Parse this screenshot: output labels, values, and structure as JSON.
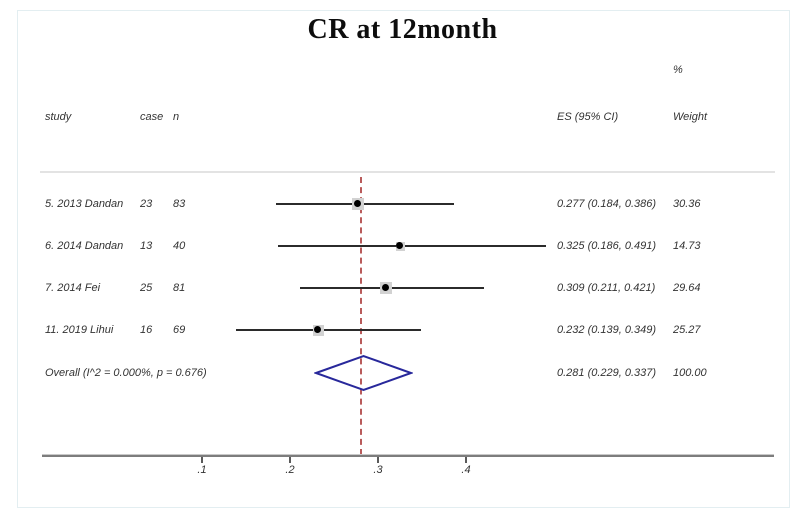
{
  "title": "CR at 12month",
  "header": {
    "study": "study",
    "case": "case",
    "n": "n",
    "es": "ES (95% CI)",
    "percent": "%",
    "weight": "Weight"
  },
  "chart_data": {
    "type": "forest",
    "title": "CR at 12month",
    "xlabel": "",
    "ylabel": "",
    "xlim": [
      -0.08,
      0.75
    ],
    "x_ticks": [
      0.1,
      0.2,
      0.3,
      0.4
    ],
    "x_tick_labels": [
      ".1",
      ".2",
      ".3",
      ".4"
    ],
    "null_line_at": 0.281,
    "grid": false,
    "legend": "none",
    "studies": [
      {
        "study": "5. 2013 Dandan",
        "case": "23",
        "n": "83",
        "es": 0.277,
        "ci_low": 0.184,
        "ci_high": 0.386,
        "es_label": "0.277 (0.184, 0.386)",
        "weight": 30.36,
        "weight_label": "30.36"
      },
      {
        "study": "6. 2014 Dandan",
        "case": "13",
        "n": "40",
        "es": 0.325,
        "ci_low": 0.186,
        "ci_high": 0.491,
        "es_label": "0.325 (0.186, 0.491)",
        "weight": 14.73,
        "weight_label": "14.73"
      },
      {
        "study": "7. 2014 Fei",
        "case": "25",
        "n": "81",
        "es": 0.309,
        "ci_low": 0.211,
        "ci_high": 0.421,
        "es_label": "0.309 (0.211, 0.421)",
        "weight": 29.64,
        "weight_label": "29.64"
      },
      {
        "study": "11. 2019 Lihui",
        "case": "16",
        "n": "69",
        "es": 0.232,
        "ci_low": 0.139,
        "ci_high": 0.349,
        "es_label": "0.232 (0.139, 0.349)",
        "weight": 25.27,
        "weight_label": "25.27"
      }
    ],
    "overall": {
      "label": "Overall  (I^2 = 0.000%, p = 0.676)",
      "es": 0.281,
      "ci_low": 0.229,
      "ci_high": 0.337,
      "es_label": "0.281 (0.229, 0.337)",
      "weight": 100.0,
      "weight_label": "100.00"
    },
    "colors": {
      "ci_line": "#2b2b2b",
      "point_dot": "#000000",
      "weight_box": "#d2d2d2",
      "diamond_stroke": "#28289b",
      "null_line": "#b24a4a",
      "axis": "#7d7d7d",
      "text": "#333333"
    }
  }
}
